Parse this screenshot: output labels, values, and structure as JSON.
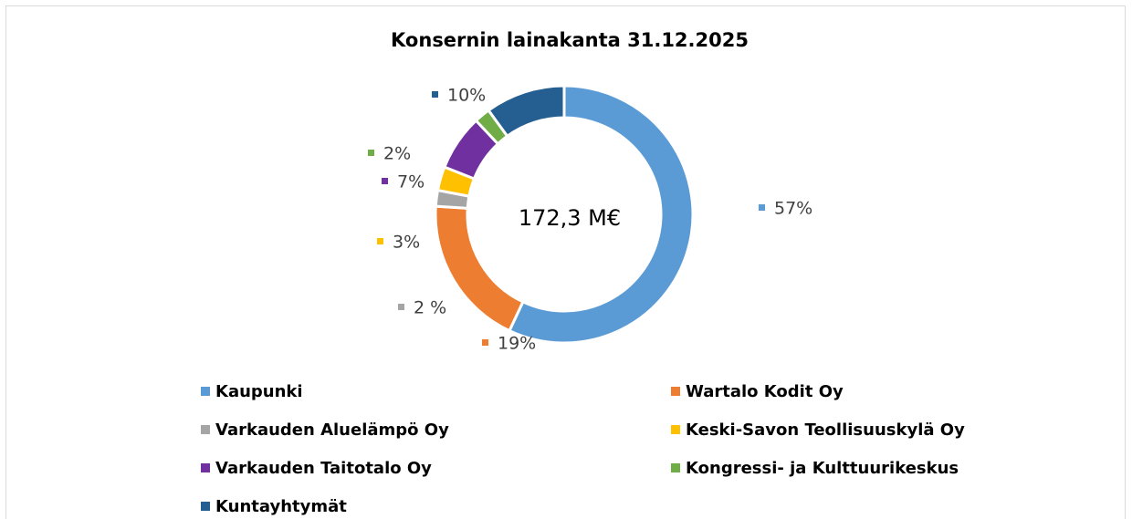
{
  "chart_data": {
    "type": "donut",
    "title": "Konsernin lainakanta 31.12.2025",
    "center_label": "172,3 M€",
    "categories": [
      "Kaupunki",
      "Wartalo Kodit Oy",
      "Varkauden Aluelämpö Oy",
      "Keski-Savon Teollisuuskylä Oy",
      "Varkauden Taitotalo Oy",
      "Kongressi- ja Kulttuurikeskus",
      "Kuntayhtymät"
    ],
    "values": [
      57,
      19,
      2,
      3,
      7,
      2,
      10
    ],
    "value_labels": [
      "57%",
      "19%",
      "2 %",
      "3%",
      "7%",
      "2%",
      "10%"
    ],
    "colors": [
      "#5b9bd5",
      "#ed7d31",
      "#a5a5a5",
      "#ffc000",
      "#7030a0",
      "#70ad47",
      "#255e91"
    ]
  }
}
